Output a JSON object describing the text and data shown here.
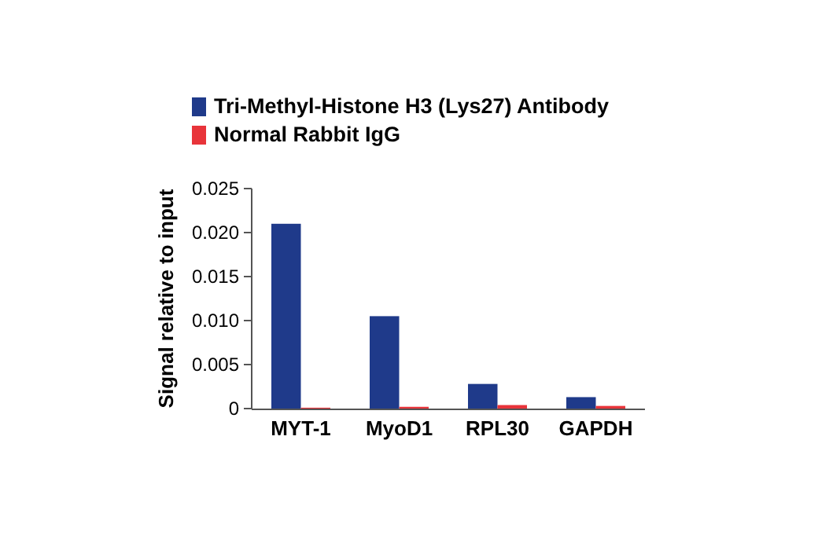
{
  "chart_data": {
    "type": "bar",
    "ylabel": "Signal relative to input",
    "categories": [
      "MYT-1",
      "MyoD1",
      "RPL30",
      "GAPDH"
    ],
    "series": [
      {
        "name": "Tri-Methyl-Histone H3 (Lys27) Antibody",
        "color": "#1f3a8a",
        "values": [
          0.021,
          0.0105,
          0.0028,
          0.0013
        ]
      },
      {
        "name": "Normal Rabbit IgG",
        "color": "#e8343a",
        "values": [
          0.0001,
          0.0002,
          0.0004,
          0.0003
        ]
      }
    ],
    "ylim": [
      0,
      0.025
    ],
    "yticks": [
      {
        "value": 0,
        "label": "0"
      },
      0.005,
      {
        "value": 0.01,
        "label": "0.010"
      },
      0.015,
      {
        "value": 0.02,
        "label": "0.020"
      },
      0.025
    ],
    "grid": false,
    "legend": "top"
  }
}
